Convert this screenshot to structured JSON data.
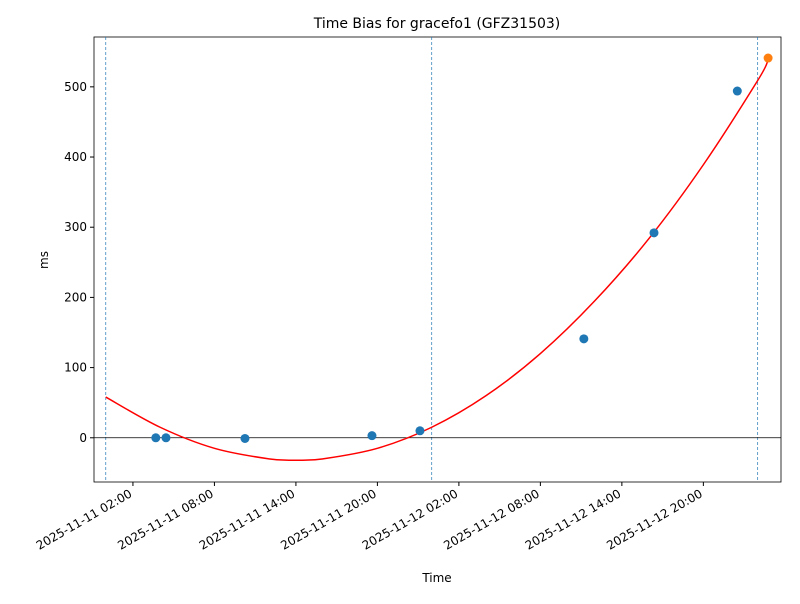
{
  "chart_data": {
    "type": "scatter",
    "title": "Time Bias for gracefo1 (GFZ31503)",
    "x_label": "Time",
    "y_label": "ms",
    "xlim": [
      "2025-11-10 23:08",
      "2025-11-13 01:43"
    ],
    "xticks": [
      "2025-11-11 02:00",
      "2025-11-11 08:00",
      "2025-11-11 14:00",
      "2025-11-11 20:00",
      "2025-11-12 02:00",
      "2025-11-12 08:00",
      "2025-11-12 14:00",
      "2025-11-12 20:00"
    ],
    "ylim": [
      -63,
      571
    ],
    "yticks": [
      0,
      100,
      200,
      300,
      400,
      500
    ],
    "series": [
      {
        "color": "#1f77b4",
        "x": [
          "2025-11-11 03:41",
          "2025-11-11 04:26",
          "2025-11-11 10:15",
          "2025-11-11 19:36",
          "2025-11-11 23:08",
          "2025-11-12 11:12",
          "2025-11-12 16:22",
          "2025-11-12 22:30"
        ],
        "values": [
          0,
          0,
          -1,
          3,
          10,
          141,
          292,
          494
        ]
      },
      {
        "color": "#ff7f0e",
        "x": [
          "2025-11-13 00:46"
        ],
        "values": [
          541
        ]
      }
    ],
    "fit": {
      "color": "#ff0000",
      "x": [
        "2025-11-11 00:00",
        "2025-11-11 04:00",
        "2025-11-11 08:00",
        "2025-11-11 12:00",
        "2025-11-11 14:00",
        "2025-11-11 16:00",
        "2025-11-11 20:00",
        "2025-11-12 00:00",
        "2025-11-12 04:00",
        "2025-11-12 08:00",
        "2025-11-12 12:00",
        "2025-11-12 16:00",
        "2025-11-12 20:00",
        "2025-11-13 00:00",
        "2025-11-13 00:46"
      ],
      "values": [
        58,
        15,
        -15,
        -30,
        -32,
        -30,
        -15,
        15,
        60,
        120,
        195,
        284,
        389,
        509,
        538
      ]
    },
    "vlines": [
      "2025-11-11 00:00",
      "2025-11-12 00:00",
      "2025-11-13 00:00"
    ],
    "vline_color": "#1f77b4",
    "hline": 0
  }
}
